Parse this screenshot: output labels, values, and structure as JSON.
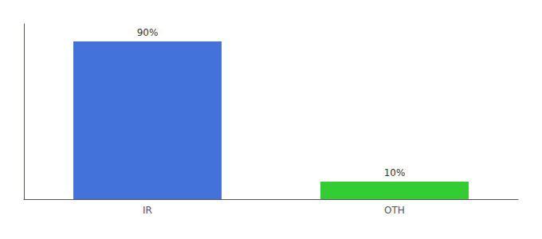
{
  "chart_data": {
    "type": "bar",
    "categories": [
      "IR",
      "OTH"
    ],
    "values": [
      90,
      10
    ],
    "value_labels": [
      "90%",
      "10%"
    ],
    "colors": [
      "#4472db",
      "#33cc33"
    ],
    "ylim": [
      0,
      100
    ],
    "grid": false,
    "tick_labels": "x",
    "data_labels": true
  }
}
